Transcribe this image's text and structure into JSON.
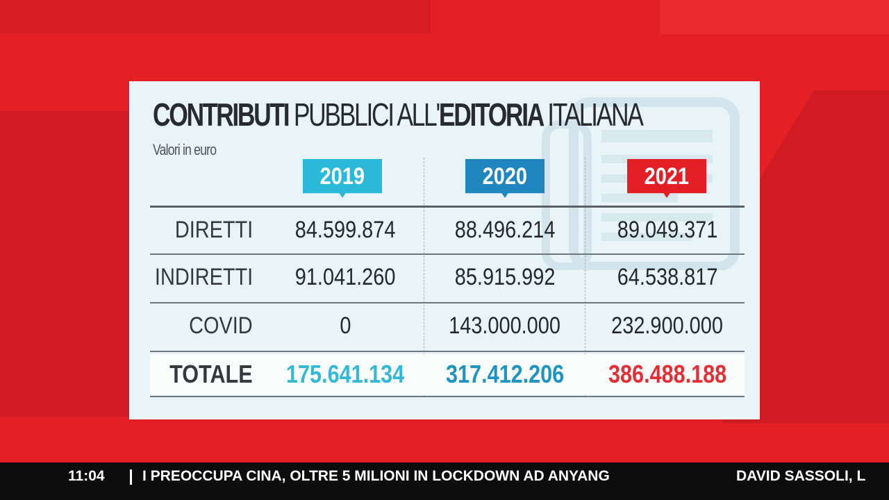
{
  "card": {
    "title_parts": [
      "CONTRIBUTI",
      "PUBBLICI ALL'",
      "EDITORIA",
      "ITALIANA"
    ],
    "subtitle": "Valori in euro",
    "watermark_icon": "newspaper-icon"
  },
  "colors": {
    "year_2019": "#2ab9d8",
    "year_2020": "#1f86c0",
    "year_2021": "#e41e25",
    "total_2019": "#34b9d4",
    "total_2020": "#1e94c2",
    "total_2021": "#e32f34"
  },
  "table": {
    "years": [
      "2019",
      "2020",
      "2021"
    ],
    "rows": [
      {
        "label": "DIRETTI",
        "values": [
          "84.599.874",
          "88.496.214",
          "89.049.371"
        ]
      },
      {
        "label": "INDIRETTI",
        "values": [
          "91.041.260",
          "85.915.992",
          "64.538.817"
        ]
      },
      {
        "label": "COVID",
        "values": [
          "0",
          "143.000.000",
          "232.900.000"
        ]
      }
    ],
    "total": {
      "label": "TOTALE",
      "values": [
        "175.641.134",
        "317.412.206",
        "386.488.188"
      ]
    }
  },
  "ticker": {
    "time": "11:04",
    "headline": "I PREOCCUPA CINA, OLTRE 5 MILIONI IN LOCKDOWN AD ANYANG",
    "next_headline": "DAVID SASSOLI, L"
  }
}
